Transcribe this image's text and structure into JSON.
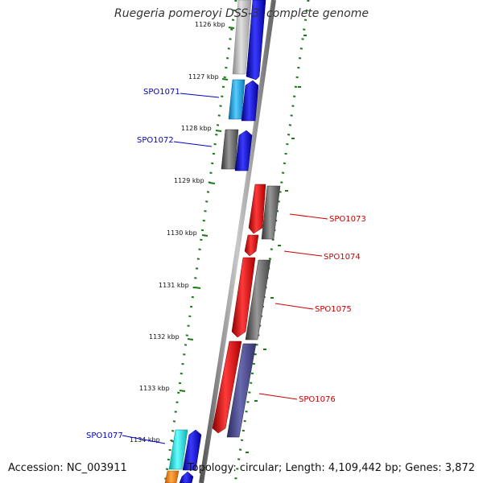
{
  "title": "Ruegeria pomeroyi DSS-3, complete genome",
  "footer": {
    "accession": "Accession: NC_003911",
    "summary": "Topology: circular; Length: 4,109,442 bp; Genes: 3,872"
  },
  "ticks": [
    {
      "label": "1126 kbp"
    },
    {
      "label": "1127 kbp"
    },
    {
      "label": "1128 kbp"
    },
    {
      "label": "1129 kbp"
    },
    {
      "label": "1130 kbp"
    },
    {
      "label": "1131 kbp"
    },
    {
      "label": "1132 kbp"
    },
    {
      "label": "1133 kbp"
    },
    {
      "label": "1134 kbp"
    }
  ],
  "gene_labels": [
    {
      "name": "SPO1071",
      "color": "#0000cc"
    },
    {
      "name": "SPO1072",
      "color": "#0000cc"
    },
    {
      "name": "SPO1073",
      "color": "#cc0000"
    },
    {
      "name": "SPO1074",
      "color": "#cc0000"
    },
    {
      "name": "SPO1075",
      "color": "#cc0000"
    },
    {
      "name": "SPO1076",
      "color": "#cc0000"
    },
    {
      "name": "SPO1077",
      "color": "#0000cc"
    }
  ],
  "colors": {
    "backbone": "#8c8c8c",
    "tick": "#1a7a1a",
    "forward_blue": "#0000ee",
    "reverse_red": "#ee0000",
    "cyan": "#22aaee",
    "gray": "#666666",
    "slate": "#4a4a8a",
    "orange": "#ff8800"
  }
}
